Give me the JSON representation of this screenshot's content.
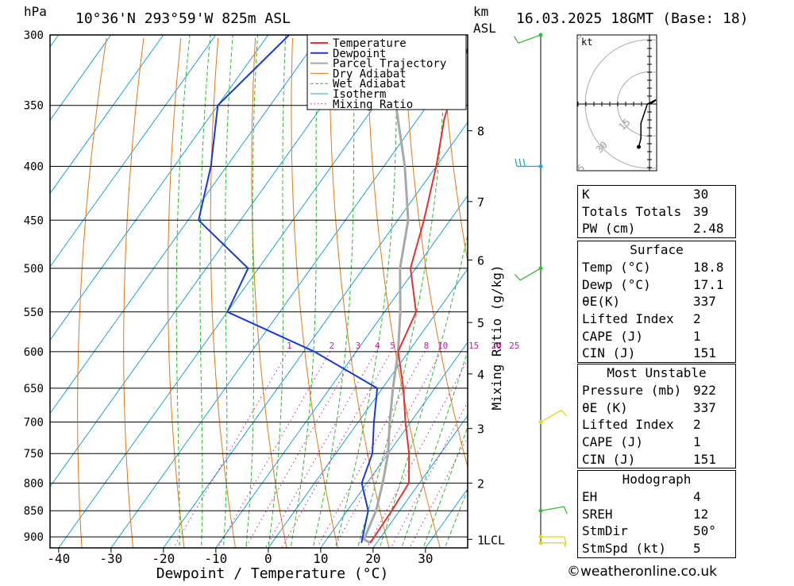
{
  "header": {
    "pressure_unit": "hPa",
    "location": "10°36'N  293°59'W  825m  ASL",
    "height_unit_km": "km",
    "height_unit_asl": "ASL",
    "datetime": "16.03.2025  18GMT  (Base: 18)"
  },
  "footer": {
    "copyright": "©weatheronline.co.uk"
  },
  "colors": {
    "temperature": "#e83030",
    "dewpoint": "#1a3ad8",
    "parcel": "#a8a8a8",
    "dry_adiabat": "#e07a18",
    "wet_adiabat": "#2cb82c",
    "isotherm": "#1ea0e0",
    "mixing_ratio": "#c020a0",
    "wind_green": "#30c030",
    "wind_cyan": "#18a8d8",
    "wind_yellow": "#e8d020"
  },
  "chart_data": {
    "type": "skew-t",
    "xlabel": "Dewpoint / Temperature (°C)",
    "ylabel_right": "Mixing Ratio (g/kg)",
    "pressure_levels": [
      300,
      350,
      400,
      450,
      500,
      550,
      600,
      650,
      700,
      750,
      800,
      850,
      900
    ],
    "temperature_ticks": [
      -40,
      -30,
      -20,
      -10,
      0,
      10,
      20,
      30
    ],
    "height_ticks_km": [
      {
        "label": "8",
        "p": 370
      },
      {
        "label": "7",
        "p": 432
      },
      {
        "label": "6",
        "p": 491
      },
      {
        "label": "5",
        "p": 563
      },
      {
        "label": "4",
        "p": 630
      },
      {
        "label": "3",
        "p": 710
      },
      {
        "label": "2",
        "p": 800
      },
      {
        "label": "1",
        "p": 905
      }
    ],
    "lcl": {
      "label": "LCL",
      "p": 905
    },
    "mixing_ratio_labels": [
      "1",
      "2",
      "3",
      "4",
      "5",
      "8",
      "10",
      "15",
      "20",
      "25"
    ],
    "legend": [
      "Temperature",
      "Dewpoint",
      "Parcel Trajectory",
      "Dry Adiabat",
      "Wet Adiabat",
      "Isotherm",
      "Mixing Ratio"
    ],
    "series": [
      {
        "name": "Temperature",
        "points": [
          [
            -31,
            300
          ],
          [
            -28,
            330
          ],
          [
            -25,
            360
          ],
          [
            -20,
            400
          ],
          [
            -15,
            450
          ],
          [
            -11,
            500
          ],
          [
            -4,
            550
          ],
          [
            -2,
            600
          ],
          [
            4,
            650
          ],
          [
            9,
            700
          ],
          [
            14,
            750
          ],
          [
            18,
            800
          ],
          [
            18.5,
            850
          ],
          [
            18.8,
            912
          ]
        ]
      },
      {
        "name": "Dewpoint",
        "points": [
          [
            -66,
            300
          ],
          [
            -70,
            350
          ],
          [
            -63,
            400
          ],
          [
            -58,
            450
          ],
          [
            -42,
            500
          ],
          [
            -40,
            550
          ],
          [
            -18,
            600
          ],
          [
            -1,
            650
          ],
          [
            3,
            700
          ],
          [
            7,
            750
          ],
          [
            9,
            800
          ],
          [
            14,
            850
          ],
          [
            17.1,
            912
          ]
        ]
      },
      {
        "name": "Parcel Trajectory",
        "points": [
          [
            -43,
            310
          ],
          [
            -36,
            350
          ],
          [
            -26,
            400
          ],
          [
            -18,
            450
          ],
          [
            -13,
            500
          ],
          [
            -7,
            550
          ],
          [
            -2,
            600
          ],
          [
            2,
            650
          ],
          [
            6,
            700
          ],
          [
            10,
            750
          ],
          [
            13,
            800
          ],
          [
            15.5,
            850
          ],
          [
            17.1,
            905
          ],
          [
            18.8,
            912
          ]
        ]
      }
    ],
    "wind_barbs": [
      {
        "p": 300,
        "color": "green",
        "dir": 250,
        "kt": 10
      },
      {
        "p": 400,
        "color": "cyan",
        "dir": 270,
        "kt": 30
      },
      {
        "p": 500,
        "color": "green",
        "dir": 240,
        "kt": 10
      },
      {
        "p": 700,
        "color": "yellow",
        "dir": 60,
        "kt": 10
      },
      {
        "p": 850,
        "color": "green",
        "dir": 80,
        "kt": 10
      },
      {
        "p": 900,
        "color": "yellow",
        "dir": 90,
        "kt": 10
      },
      {
        "p": 912,
        "color": "yellow",
        "dir": 90,
        "kt": 5
      }
    ],
    "hodograph": {
      "unit": "kt",
      "ring_labels": [
        "15",
        "30",
        "45"
      ],
      "trace": [
        [
          0.0,
          0.0
        ],
        [
          2,
          1
        ],
        [
          3,
          2
        ],
        [
          -1,
          0
        ],
        [
          -4,
          -9
        ],
        [
          -4,
          -16
        ],
        [
          -5,
          -20
        ]
      ]
    }
  },
  "indices": {
    "k_label": "K",
    "k_value": "30",
    "tt_label": "Totals Totals",
    "tt_value": "39",
    "pw_label": "PW (cm)",
    "pw_value": "2.48"
  },
  "surface": {
    "title": "Surface",
    "temp_label": "Temp (°C)",
    "temp_value": "18.8",
    "dewp_label": "Dewp (°C)",
    "dewp_value": "17.1",
    "theta_label": "θE(K)",
    "theta_value": "337",
    "li_label": "Lifted Index",
    "li_value": "2",
    "cape_label": "CAPE (J)",
    "cape_value": "1",
    "cin_label": "CIN (J)",
    "cin_value": "151"
  },
  "most_unstable": {
    "title": "Most Unstable",
    "pressure_label": "Pressure (mb)",
    "pressure_value": "922",
    "theta_label": "θE (K)",
    "theta_value": "337",
    "li_label": "Lifted Index",
    "li_value": "2",
    "cape_label": "CAPE (J)",
    "cape_value": "1",
    "cin_label": "CIN (J)",
    "cin_value": "151"
  },
  "hodograph_table": {
    "title": "Hodograph",
    "eh_label": "EH",
    "eh_value": "4",
    "srh_label": "SREH",
    "srh_value": "12",
    "dir_label": "StmDir",
    "dir_value": "50°",
    "spd_label": "StmSpd (kt)",
    "spd_value": "5"
  }
}
